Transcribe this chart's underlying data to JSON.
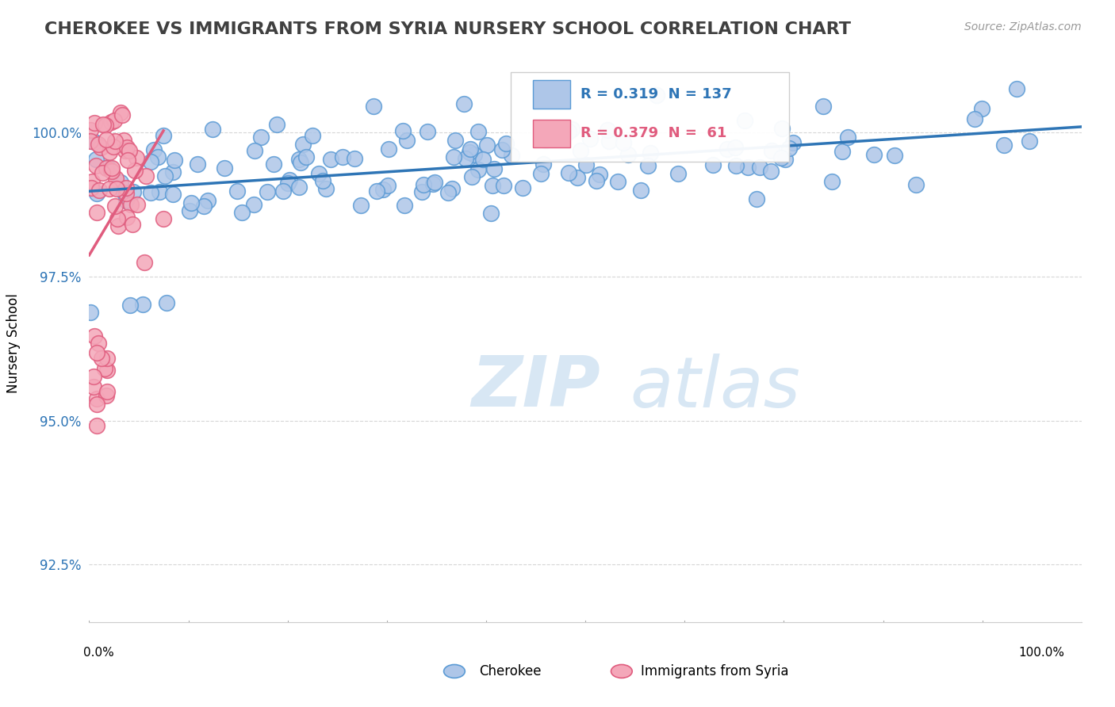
{
  "title": "CHEROKEE VS IMMIGRANTS FROM SYRIA NURSERY SCHOOL CORRELATION CHART",
  "source": "Source: ZipAtlas.com",
  "ylabel": "Nursery School",
  "ytick_labels": [
    "92.5%",
    "95.0%",
    "97.5%",
    "100.0%"
  ],
  "ytick_values": [
    92.5,
    95.0,
    97.5,
    100.0
  ],
  "xlim": [
    0.0,
    100.0
  ],
  "ylim": [
    91.5,
    101.2
  ],
  "cherokee_R": 0.319,
  "cherokee_N": 137,
  "syria_R": 0.379,
  "syria_N": 61,
  "cherokee_color": "#aec6e8",
  "cherokee_edge": "#5b9bd5",
  "syria_color": "#f4a7b9",
  "syria_edge": "#e05c7e",
  "cherokee_line_color": "#2e75b6",
  "syria_line_color": "#e05c7e",
  "watermark_zip": "ZIP",
  "watermark_atlas": "atlas",
  "legend_cherokee_label": "Cherokee",
  "legend_syria_label": "Immigrants from Syria"
}
